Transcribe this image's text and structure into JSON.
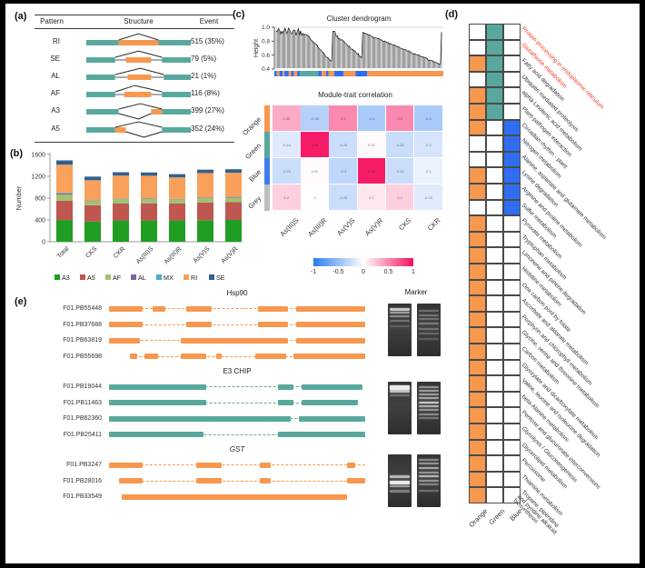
{
  "figure": {
    "panel_labels": {
      "a": "(a)",
      "b": "(b)",
      "c": "(c)",
      "d": "(d)",
      "e": "(e)"
    }
  },
  "palette": {
    "teal": "#58a89d",
    "orange": "#f8974e",
    "blue": "#2f6ef2",
    "grey": "#bdbdbd",
    "red_label": "#ee3b24",
    "heat_pos": "#f5105f",
    "heat_neg": "#2b7bf0",
    "cell_border": "#4a4a4a"
  },
  "panel_a": {
    "headers": [
      "Pattern",
      "Structure",
      "Event"
    ],
    "rows": [
      {
        "pattern": "RI",
        "event": "515 (35%)"
      },
      {
        "pattern": "SE",
        "event": "79 (5%)"
      },
      {
        "pattern": "AL",
        "event": "21 (1%)"
      },
      {
        "pattern": "AF",
        "event": "116 (8%)"
      },
      {
        "pattern": "A3",
        "event": "399 (27%)"
      },
      {
        "pattern": "A5",
        "event": "352 (24%)"
      }
    ]
  },
  "chart_data": [
    {
      "id": "as-event-counts",
      "type": "bar",
      "stacked": true,
      "ylabel": "Number",
      "ylim": [
        0,
        1600
      ],
      "yticks": [
        0,
        400,
        800,
        1200,
        1600
      ],
      "categories": [
        "Total",
        "CKS",
        "CKR",
        "As(III)S",
        "As(III)R",
        "As(V)S",
        "As(V)R"
      ],
      "series": [
        {
          "name": "A3",
          "color": "#1f9e22",
          "values": [
            399,
            370,
            390,
            390,
            390,
            395,
            400
          ]
        },
        {
          "name": "A5",
          "color": "#bf5650",
          "values": [
            352,
            300,
            310,
            315,
            310,
            325,
            325
          ]
        },
        {
          "name": "AF",
          "color": "#a3c172",
          "values": [
            116,
            75,
            80,
            78,
            72,
            82,
            85
          ]
        },
        {
          "name": "AL",
          "color": "#8064a2",
          "values": [
            21,
            8,
            8,
            8,
            8,
            8,
            10
          ]
        },
        {
          "name": "MX",
          "color": "#4bacc6",
          "values": [
            10,
            5,
            5,
            5,
            5,
            5,
            5
          ]
        },
        {
          "name": "RI",
          "color": "#f9a05a",
          "values": [
            515,
            370,
            420,
            415,
            395,
            445,
            440
          ]
        },
        {
          "name": "SE",
          "color": "#31608f",
          "values": [
            79,
            67,
            62,
            60,
            60,
            62,
            65
          ]
        }
      ],
      "legend_position": "bottom"
    },
    {
      "id": "cluster-dendrogram",
      "type": "line",
      "title": "Cluster dendrogram",
      "ylabel": "Height",
      "ylim": [
        0.4,
        1.0
      ],
      "yticks": [
        "1.0",
        "0.8",
        "0.6",
        "0.4"
      ],
      "module_strip": [
        [
          "#2f6ef2",
          1.5
        ],
        [
          "#f8974e",
          1.5
        ],
        [
          "#2f6ef2",
          2
        ],
        [
          "#f8974e",
          1
        ],
        [
          "#2f6ef2",
          2.5
        ],
        [
          "#f8974e",
          1.5
        ],
        [
          "#2f6ef2",
          1.5
        ],
        [
          "#f8974e",
          2
        ],
        [
          "#2f6ef2",
          1.5
        ],
        [
          "#58a89d",
          11
        ],
        [
          "#2f6ef2",
          2
        ],
        [
          "#f8974e",
          2.5
        ],
        [
          "#2f6ef2",
          1.5
        ],
        [
          "#f8974e",
          3.5
        ],
        [
          "#2f6ef2",
          5.5
        ],
        [
          "#f8974e",
          7
        ],
        [
          "#2f6ef2",
          7
        ],
        [
          "#f8974e",
          45
        ]
      ]
    },
    {
      "id": "module-trait-correlation",
      "type": "heatmap",
      "title": "Module-trait correlation",
      "rows": [
        "Orange",
        "Green",
        "Blue",
        "Grey"
      ],
      "row_colors": [
        "#f8974e",
        "#58a89d",
        "#3d7df0",
        "#bdbdbd"
      ],
      "columns": [
        "As(III)S",
        "As(III)R",
        "As(V)S",
        "As(V)R",
        "CKS",
        "CKR"
      ],
      "values": [
        [
          0.35,
          -0.35,
          0.5,
          -0.4,
          0.5,
          -0.4
        ],
        [
          -0.15,
          0.95,
          -0.25,
          0.02,
          -0.25,
          -0.2
        ],
        [
          -0.25,
          0.02,
          -0.3,
          0.95,
          -0.25,
          -0.1
        ],
        [
          0.2,
          0.0,
          -0.25,
          0.1,
          0.2,
          -0.15
        ]
      ],
      "colorbar": {
        "min": -1,
        "max": 1,
        "tick_labels": [
          "-1",
          "-0.5",
          "0",
          "0.5",
          "1"
        ]
      }
    },
    {
      "id": "pathway-module-membership",
      "type": "heatmap",
      "columns": [
        "Orange",
        "Green",
        "Blue"
      ],
      "rows": [
        {
          "label": "Protein processing in endoplasmic reticulum",
          "red": true,
          "cells": [
            "W",
            "G",
            "W"
          ]
        },
        {
          "label": "Glutathione metabolism",
          "red": true,
          "cells": [
            "W",
            "G",
            "W"
          ]
        },
        {
          "label": "Fatty acid degradation",
          "red": false,
          "cells": [
            "O",
            "G",
            "W"
          ]
        },
        {
          "label": "Ubiquitin mediated proteolysis",
          "red": false,
          "cells": [
            "W",
            "G",
            "W"
          ]
        },
        {
          "label": "alpha-Linolenic acid metabolism",
          "red": false,
          "cells": [
            "O",
            "G",
            "W"
          ]
        },
        {
          "label": "Plant-pathogen interaction",
          "red": false,
          "cells": [
            "O",
            "G",
            "W"
          ]
        },
        {
          "label": "Circadian rhythm - plant",
          "red": false,
          "cells": [
            "O",
            "W",
            "B"
          ]
        },
        {
          "label": "Nitrogen metabolism",
          "red": false,
          "cells": [
            "W",
            "W",
            "B"
          ]
        },
        {
          "label": "Alanine, aspartate and glutamate metabolism",
          "red": false,
          "cells": [
            "W",
            "W",
            "B"
          ]
        },
        {
          "label": "Lysine degradation",
          "red": false,
          "cells": [
            "O",
            "W",
            "B"
          ]
        },
        {
          "label": "Arginine and proline metabolism",
          "red": false,
          "cells": [
            "O",
            "W",
            "B"
          ]
        },
        {
          "label": "Sulfur metabolism",
          "red": false,
          "cells": [
            "W",
            "W",
            "B"
          ]
        },
        {
          "label": "Pyruvate metabolism",
          "red": false,
          "cells": [
            "O",
            "W",
            "W"
          ]
        },
        {
          "label": "Tryptophan metabolism",
          "red": false,
          "cells": [
            "O",
            "W",
            "W"
          ]
        },
        {
          "label": "Limonene and pinene degradation",
          "red": false,
          "cells": [
            "O",
            "W",
            "W"
          ]
        },
        {
          "label": "Histidine metabolism",
          "red": false,
          "cells": [
            "O",
            "W",
            "W"
          ]
        },
        {
          "label": "One carbon pool by folate",
          "red": false,
          "cells": [
            "O",
            "W",
            "W"
          ]
        },
        {
          "label": "Ascorbate and aldarate metabolism",
          "red": false,
          "cells": [
            "O",
            "W",
            "W"
          ]
        },
        {
          "label": "Porphyrin and chlorophyll metabolism",
          "red": false,
          "cells": [
            "O",
            "W",
            "W"
          ]
        },
        {
          "label": "Glycine, serine and threonine metabolism",
          "red": false,
          "cells": [
            "O",
            "W",
            "W"
          ]
        },
        {
          "label": "Carbon metabolism",
          "red": false,
          "cells": [
            "O",
            "W",
            "W"
          ]
        },
        {
          "label": "Glyoxylate and dicarboxylate metabolism",
          "red": false,
          "cells": [
            "O",
            "W",
            "W"
          ]
        },
        {
          "label": "Valine, leucine and isoleucine degradation",
          "red": false,
          "cells": [
            "O",
            "W",
            "W"
          ]
        },
        {
          "label": "beta-Alanine metabolism",
          "red": false,
          "cells": [
            "O",
            "W",
            "W"
          ]
        },
        {
          "label": "Pentose and glucuronate interconversions",
          "red": false,
          "cells": [
            "O",
            "W",
            "W"
          ]
        },
        {
          "label": "Glycolysis / Gluconeogenesis",
          "red": false,
          "cells": [
            "O",
            "W",
            "W"
          ]
        },
        {
          "label": "Glycerolipid metabolism",
          "red": false,
          "cells": [
            "O",
            "W",
            "W"
          ]
        },
        {
          "label": "Peroxisome",
          "red": false,
          "cells": [
            "O",
            "W",
            "W"
          ]
        },
        {
          "label": "Thiamine metabolism",
          "red": false,
          "cells": [
            "O",
            "W",
            "W"
          ]
        },
        {
          "label": "Tropane, piperidine\nand pyridine alkaloid\nbiosynthesis",
          "red": false,
          "cells": [
            "O",
            "W",
            "W"
          ]
        }
      ]
    }
  ],
  "panel_e": {
    "marker_title": "Marker",
    "groups": [
      {
        "title": "Hsp90",
        "italic": false,
        "color": "#f8974e",
        "isoforms": [
          {
            "label": "F01.PB55448",
            "span": [
              0,
              100
            ],
            "exons": [
              [
                0,
                13
              ],
              [
                17,
                22
              ],
              [
                30,
                40
              ],
              [
                58,
                70
              ],
              [
                73,
                100
              ]
            ]
          },
          {
            "label": "F01.PB37688",
            "span": [
              0,
              100
            ],
            "exons": [
              [
                0,
                13
              ],
              [
                30,
                40
              ],
              [
                58,
                70
              ],
              [
                73,
                100
              ]
            ]
          },
          {
            "label": "F01.PB63819",
            "span": [
              0,
              100
            ],
            "exons": [
              [
                0,
                12
              ],
              [
                28,
                70
              ],
              [
                73,
                100
              ]
            ]
          },
          {
            "label": "F01.PB55698",
            "span": [
              8,
              100
            ],
            "exons": [
              [
                8,
                11
              ],
              [
                14,
                19
              ],
              [
                28,
                38
              ],
              [
                42,
                44
              ],
              [
                57,
                69
              ],
              [
                72,
                100
              ]
            ]
          }
        ]
      },
      {
        "title": "E3 CHIP",
        "italic": false,
        "color": "#58a89d",
        "isoforms": [
          {
            "label": "F01.PB19044",
            "span": [
              0,
              99
            ],
            "exons": [
              [
                0,
                38
              ],
              [
                66,
                72
              ],
              [
                75,
                99
              ]
            ]
          },
          {
            "label": "F01.PB11463",
            "span": [
              0,
              97
            ],
            "exons": [
              [
                0,
                38
              ],
              [
                66,
                72
              ],
              [
                75,
                97
              ]
            ]
          },
          {
            "label": "F01.PB62360",
            "span": [
              0,
              100
            ],
            "exons": [
              [
                0,
                71
              ],
              [
                74,
                100
              ]
            ]
          },
          {
            "label": "F01.PB25411",
            "span": [
              0,
              100
            ],
            "exons": [
              [
                0,
                37
              ],
              [
                66,
                100
              ]
            ]
          }
        ]
      },
      {
        "title": "GST",
        "italic": true,
        "color": "#f8974e",
        "isoforms": [
          {
            "label": "F01.PB3247",
            "span": [
              0,
              100
            ],
            "exons": [
              [
                0,
                13
              ],
              [
                34,
                44
              ],
              [
                59,
                63
              ],
              [
                93,
                96
              ]
            ]
          },
          {
            "label": "F01.PB28016",
            "span": [
              4,
              100
            ],
            "exons": [
              [
                4,
                13
              ],
              [
                34,
                44
              ],
              [
                59,
                63
              ],
              [
                93,
                100
              ]
            ]
          },
          {
            "label": "F01.PB33549",
            "span": [
              5,
              93
            ],
            "exons": [
              [
                5,
                93
              ]
            ]
          }
        ]
      }
    ],
    "gels": [
      {
        "sample_bands": [
          [
            8,
            0.8,
            3
          ],
          [
            15,
            0.55,
            2
          ],
          [
            22,
            0.45,
            2
          ],
          [
            31,
            0.3,
            2
          ],
          [
            42,
            0.18,
            2
          ]
        ],
        "ladder_bands": [
          [
            12,
            0.3,
            2
          ],
          [
            20,
            0.32,
            2
          ],
          [
            28,
            0.3,
            2
          ],
          [
            37,
            0.35,
            2
          ],
          [
            46,
            0.3,
            2
          ],
          [
            56,
            0.24,
            2
          ],
          [
            66,
            0.2,
            2
          ]
        ]
      },
      {
        "sample_bands": [
          [
            7,
            1,
            5
          ],
          [
            16,
            0.75,
            3
          ],
          [
            24,
            0.3,
            2
          ]
        ],
        "ladder_bands": [
          [
            8,
            0.5,
            2
          ],
          [
            15,
            0.55,
            2
          ],
          [
            22,
            0.55,
            2
          ],
          [
            30,
            0.6,
            2
          ],
          [
            38,
            0.8,
            2
          ],
          [
            45,
            0.65,
            2
          ],
          [
            52,
            0.5,
            2
          ],
          [
            60,
            0.45,
            2
          ],
          [
            68,
            0.35,
            2
          ]
        ]
      },
      {
        "sample_bands": [
          [
            40,
            0.7,
            3
          ],
          [
            50,
            1,
            4
          ],
          [
            58,
            0.55,
            2
          ],
          [
            68,
            0.4,
            3
          ]
        ],
        "ladder_bands": [
          [
            8,
            0.45,
            2
          ],
          [
            16,
            0.5,
            2
          ],
          [
            24,
            0.6,
            2
          ],
          [
            32,
            0.5,
            2
          ],
          [
            40,
            0.7,
            2
          ],
          [
            48,
            0.5,
            2
          ],
          [
            56,
            0.4,
            2
          ],
          [
            68,
            0.3,
            2
          ]
        ]
      }
    ]
  }
}
